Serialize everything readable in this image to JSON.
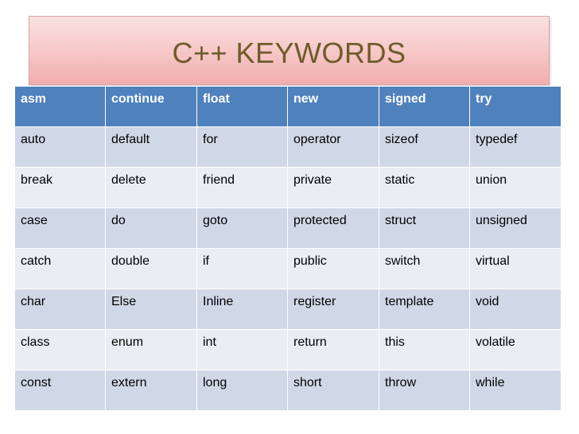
{
  "title": "C++ KEYWORDS",
  "table": {
    "header": [
      "asm",
      "continue",
      "float",
      "new",
      "signed",
      "try"
    ],
    "rows": [
      [
        "auto",
        "default",
        "for",
        "operator",
        "sizeof",
        "typedef"
      ],
      [
        "break",
        "delete",
        "friend",
        "private",
        "static",
        "union"
      ],
      [
        "case",
        "do",
        "goto",
        "protected",
        "struct",
        "unsigned"
      ],
      [
        "catch",
        "double",
        "if",
        "public",
        "switch",
        "virtual"
      ],
      [
        "char",
        "Else",
        "Inline",
        "register",
        "template",
        "void"
      ],
      [
        "class",
        "enum",
        "int",
        "return",
        "this",
        "volatile"
      ],
      [
        "const",
        "extern",
        "long",
        "short",
        "throw",
        "while"
      ]
    ]
  },
  "colors": {
    "title_text": "#6f5b2a",
    "title_banner": "#f6c6c6",
    "header_bg": "#4f81bd",
    "row_odd_bg": "#d0d8e8",
    "row_even_bg": "#e9edf4"
  }
}
